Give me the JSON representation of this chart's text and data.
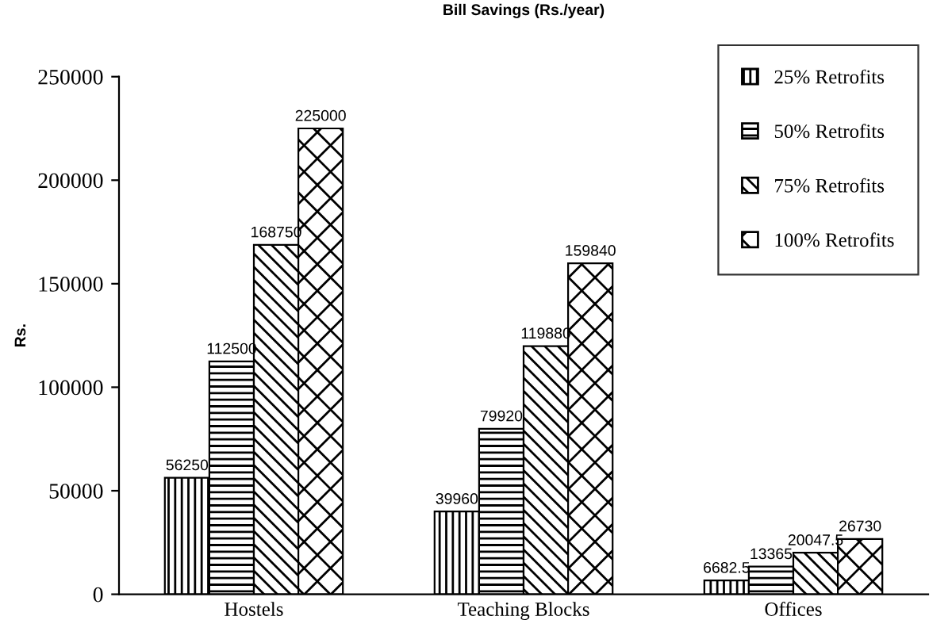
{
  "chart_data": {
    "type": "bar",
    "title": "Bill Savings (Rs./year)",
    "ylabel": "Rs.",
    "categories": [
      "Hostels",
      "Teaching Blocks",
      "Offices"
    ],
    "series": [
      {
        "name": "25% Retrofits",
        "color": "#000000",
        "values": [
          56250,
          39960,
          6682.5
        ]
      },
      {
        "name": "50% Retrofits",
        "color": "#000000",
        "values": [
          112500,
          79920,
          13365
        ]
      },
      {
        "name": "75% Retrofits",
        "color": "#000000",
        "values": [
          168750,
          119880,
          20047.5
        ]
      },
      {
        "name": "100% Retrofits",
        "color": "#000000",
        "values": [
          225000,
          159840,
          26730
        ]
      }
    ],
    "ylim": [
      0,
      250000
    ],
    "yticks": [
      0,
      50000,
      100000,
      150000,
      200000,
      250000
    ],
    "grid": false,
    "legend": "top right",
    "data_labels": true
  }
}
